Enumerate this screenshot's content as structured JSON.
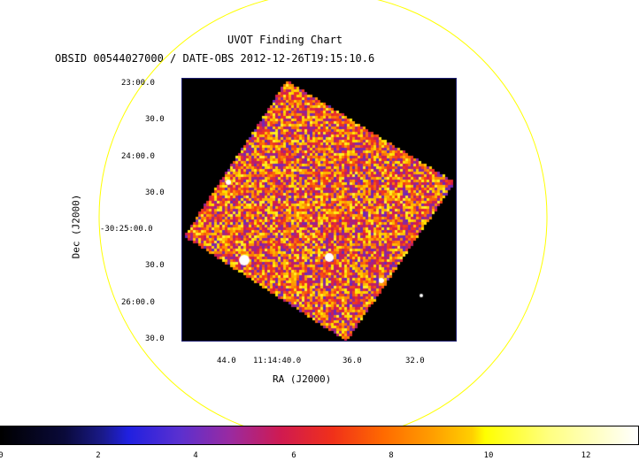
{
  "title": "UVOT Finding Chart",
  "subtitle": "OBSID 00544027000 / DATE-OBS 2012-12-26T19:15:10.6",
  "axes": {
    "ylabel": "Dec (J2000)",
    "xlabel": "RA (J2000)",
    "dec_ticks": [
      "23:00.0",
      "30.0",
      "24:00.0",
      "30.0",
      "-30:25:00.0",
      "30.0",
      "26:00.0",
      "30.0"
    ],
    "ra_ticks": [
      "44.0",
      "11:14:40.0",
      "36.0",
      "32.0"
    ]
  },
  "colorbar": {
    "ticks": [
      "0",
      "2",
      "4",
      "6",
      "8",
      "10",
      "12"
    ],
    "range": [
      0,
      13
    ]
  },
  "colors": {
    "circle": "#ffff00",
    "background": "#000000"
  }
}
